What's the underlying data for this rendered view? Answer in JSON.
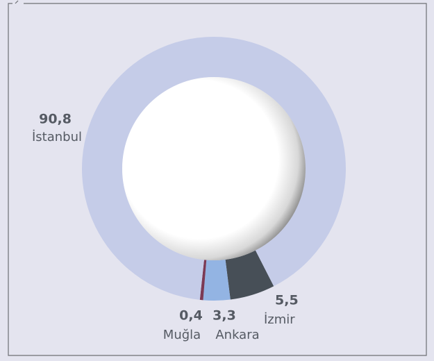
{
  "chart_data": {
    "type": "pie",
    "donut": true,
    "categories": [
      "İzmir",
      "Ankara",
      "Muğla",
      "İstanbul"
    ],
    "values": [
      5.5,
      3.3,
      0.4,
      90.8
    ],
    "value_labels": [
      "5,5",
      "3,3",
      "0,4",
      "90,8"
    ],
    "colors": [
      "#474f57",
      "#93b4e3",
      "#7b3a55",
      "#c5cce8"
    ]
  }
}
